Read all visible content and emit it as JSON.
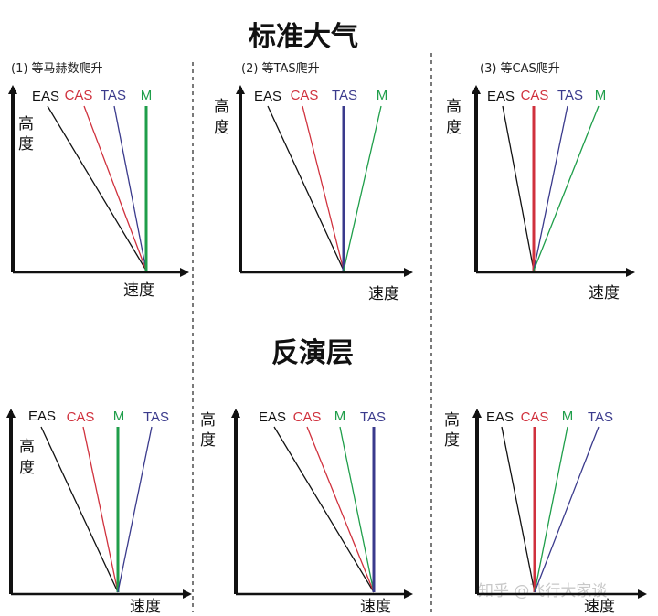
{
  "colors": {
    "EAS": "#111111",
    "CAS": "#d0313d",
    "TAS": "#3a3a8c",
    "M": "#1f9e4a"
  },
  "titles": {
    "standard": "标准大气",
    "inversion": "反演层"
  },
  "axes": {
    "y_label_top": "高",
    "y_label_bottom": "度",
    "x_label": "速度"
  },
  "watermark": "知乎 @飞行大家谈",
  "panels": [
    {
      "caption": "(1) 等马赫数爬升",
      "labels": [
        "EAS",
        "CAS",
        "TAS",
        "M"
      ],
      "vertical": "M"
    },
    {
      "caption": "(2) 等TAS爬升",
      "labels": [
        "EAS",
        "CAS",
        "TAS",
        "M"
      ],
      "vertical": "TAS"
    },
    {
      "caption": "(3) 等CAS爬升",
      "labels": [
        "EAS",
        "CAS",
        "TAS",
        "M"
      ],
      "vertical": "CAS"
    },
    {
      "caption": "",
      "labels": [
        "EAS",
        "CAS",
        "M",
        "TAS"
      ],
      "vertical": "M"
    },
    {
      "caption": "",
      "labels": [
        "EAS",
        "CAS",
        "M",
        "TAS"
      ],
      "vertical": "TAS"
    },
    {
      "caption": "",
      "labels": [
        "EAS",
        "CAS",
        "M",
        "TAS"
      ],
      "vertical": "CAS"
    }
  ]
}
